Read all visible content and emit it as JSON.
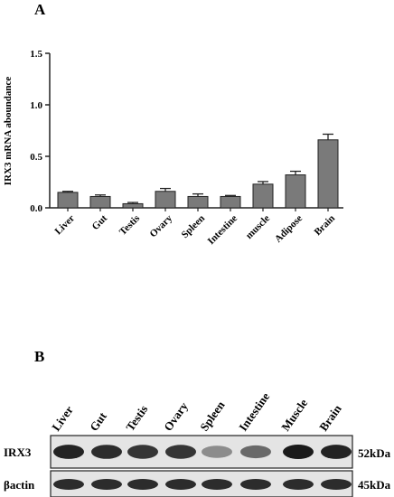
{
  "panel_a": {
    "letter": "A",
    "chart_data": {
      "type": "bar",
      "title": "",
      "xlabel": "",
      "ylabel": "IRX3 mRNA aboundance",
      "ylim": [
        0,
        1.5
      ],
      "yticks": [
        "0.0",
        "0.5",
        "1.0",
        "1.5"
      ],
      "categories": [
        "Liver",
        "Gut",
        "Testis",
        "Ovary",
        "Spleen",
        "Intestine",
        "muscle",
        "Adipose",
        "Brain"
      ],
      "values": [
        0.15,
        0.11,
        0.04,
        0.16,
        0.11,
        0.11,
        0.23,
        0.32,
        0.66
      ],
      "errors": [
        0.01,
        0.015,
        0.012,
        0.028,
        0.025,
        0.01,
        0.025,
        0.035,
        0.055
      ],
      "bar_color": "#7a7a7a",
      "grid": false
    }
  },
  "panel_b": {
    "letter": "B",
    "lanes": [
      "Liver",
      "Gut",
      "Testis",
      "Ovary",
      "Spleen",
      "Intestine",
      "Muscle",
      "Brain"
    ],
    "rows": [
      {
        "label": "IRX3",
        "size": "52kDa",
        "intensity": [
          0.95,
          0.9,
          0.85,
          0.85,
          0.35,
          0.55,
          1.0,
          0.95
        ]
      },
      {
        "label": "βactin",
        "size": "45kDa",
        "intensity": [
          0.9,
          0.9,
          0.9,
          0.9,
          0.9,
          0.9,
          0.9,
          0.9
        ]
      }
    ]
  }
}
